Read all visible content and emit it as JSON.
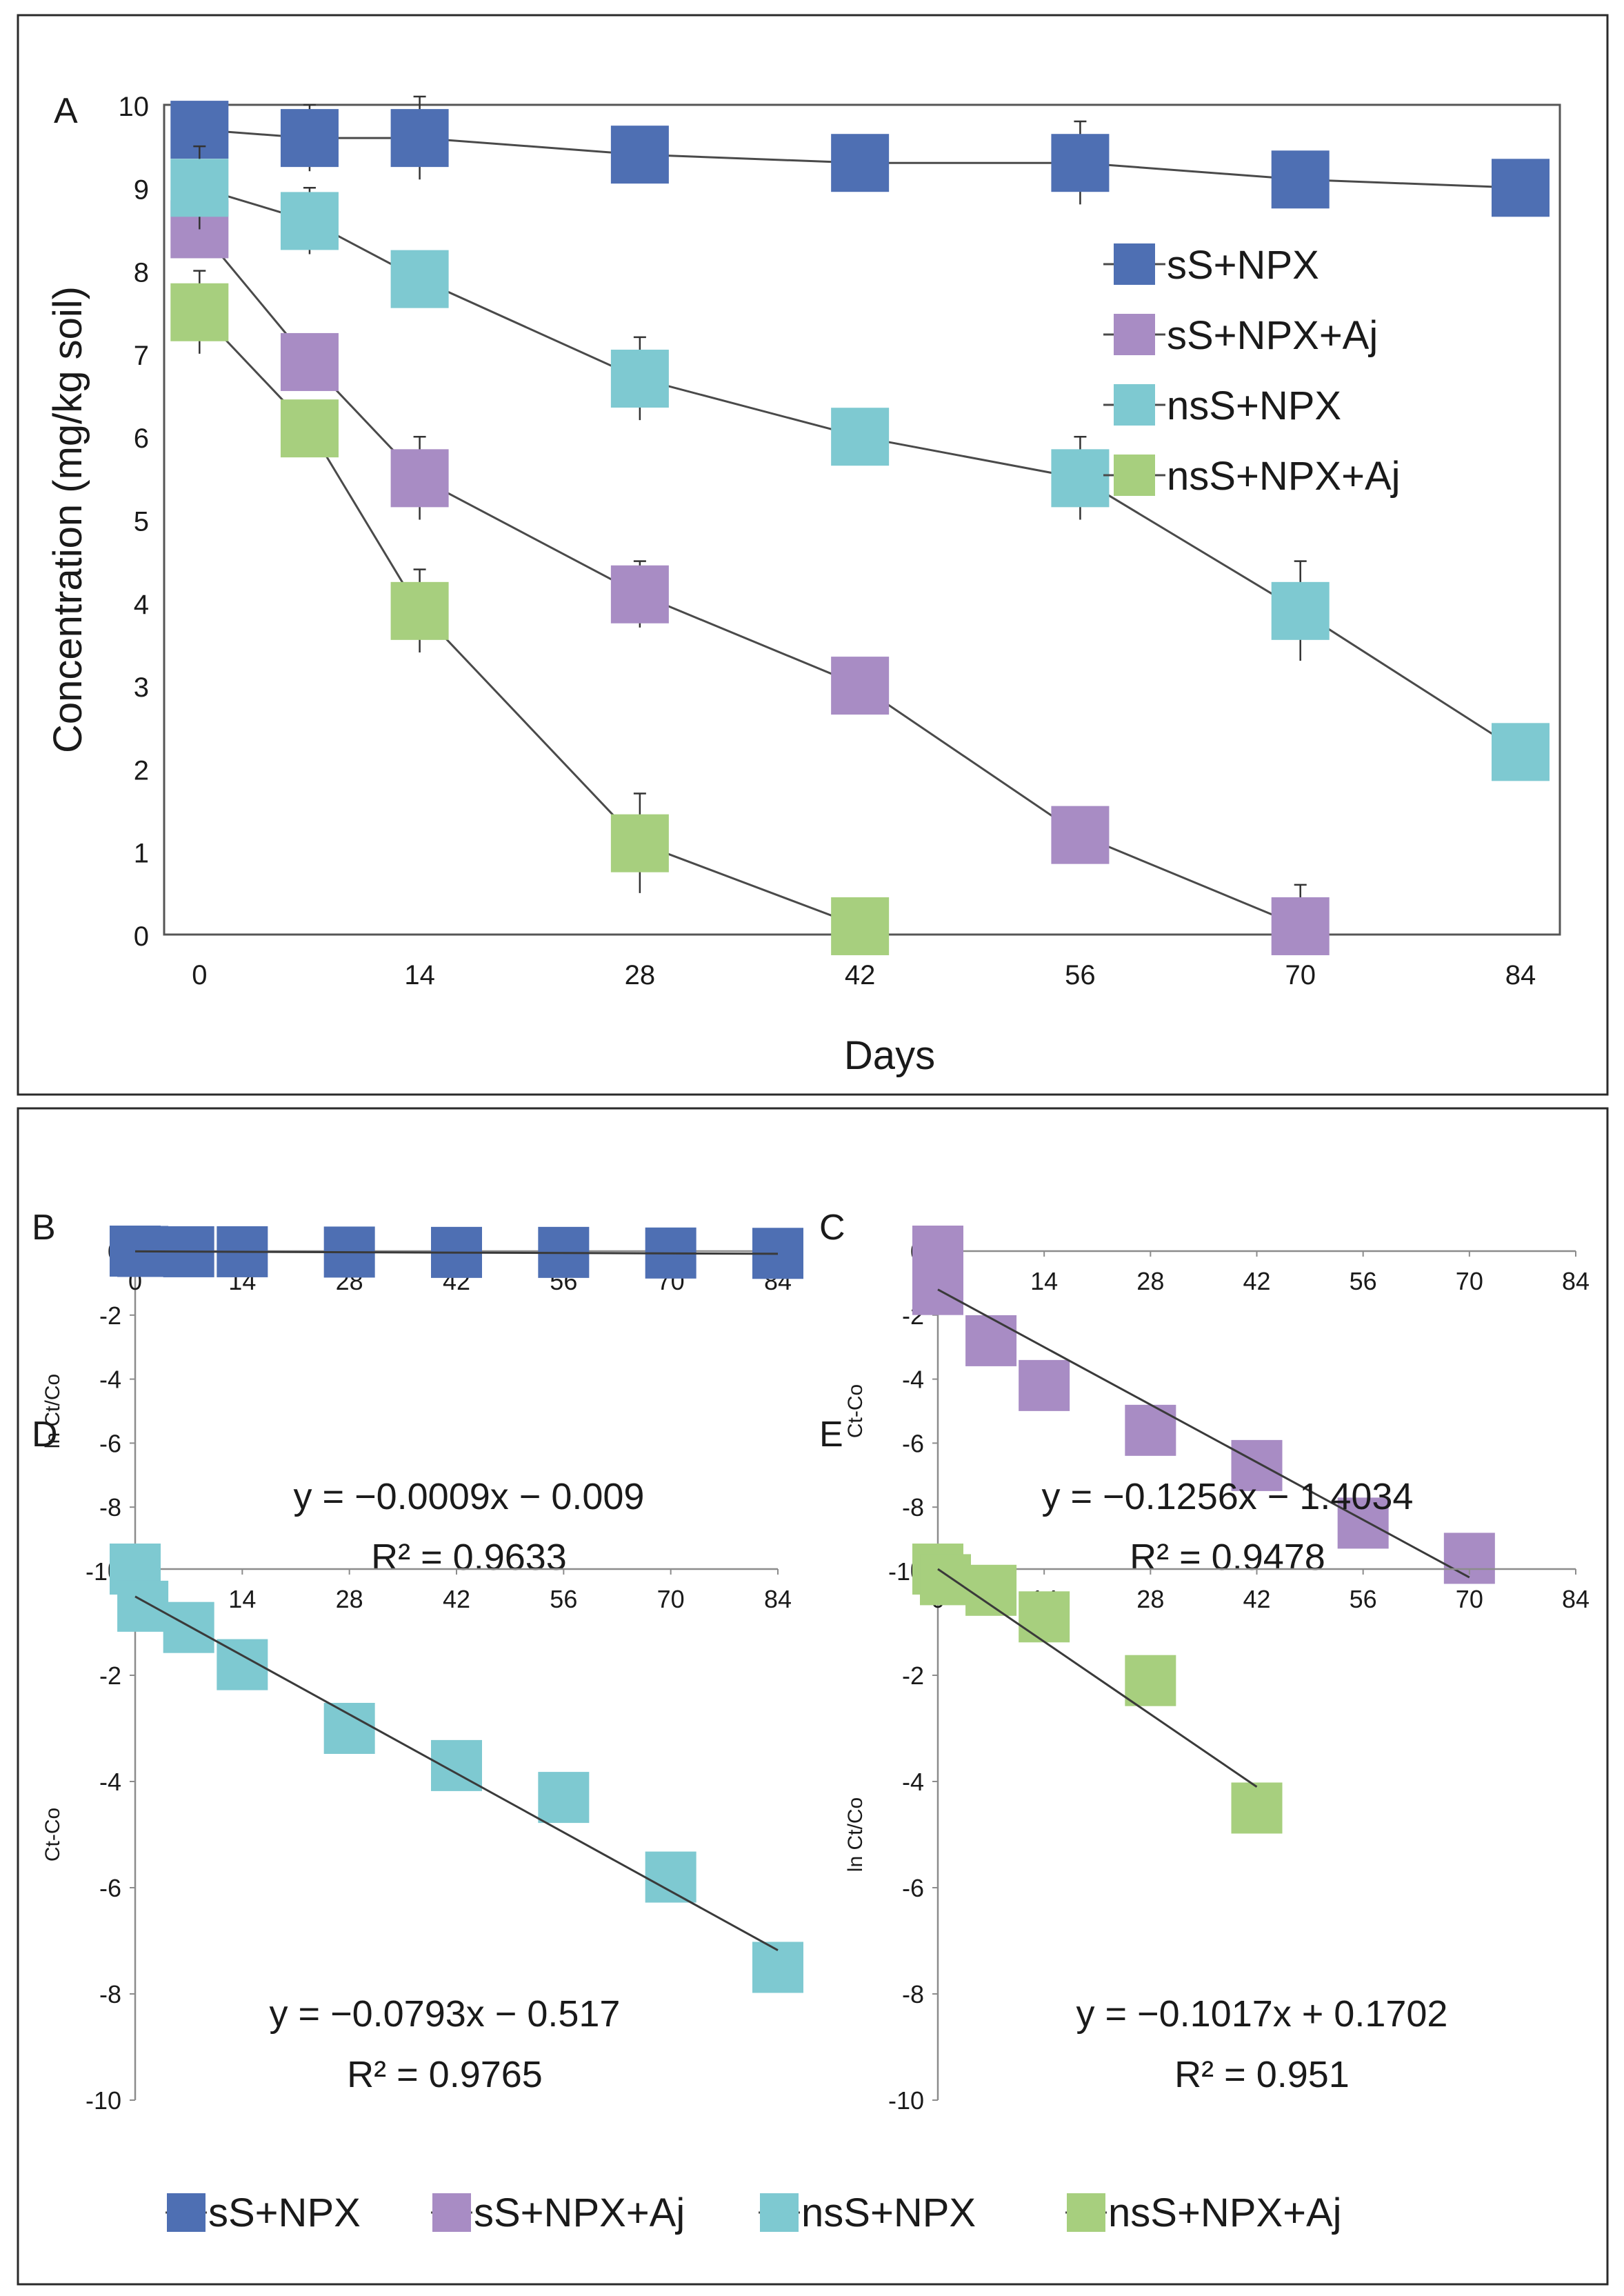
{
  "chart_data": [
    {
      "panel": "A",
      "type": "line",
      "xlabel": "Days",
      "ylabel": "Concentration (mg/kg soil)",
      "xlim": [
        0,
        84
      ],
      "ylim": [
        0,
        10
      ],
      "xticks": [
        0,
        14,
        28,
        42,
        56,
        70,
        84
      ],
      "yticks": [
        0,
        1,
        2,
        3,
        4,
        5,
        6,
        7,
        8,
        9,
        10
      ],
      "error_bars": true,
      "series": [
        {
          "name": "sS+NPX",
          "color": "#4e6fb3",
          "x": [
            0,
            7,
            14,
            28,
            42,
            56,
            70,
            84
          ],
          "y": [
            9.7,
            9.6,
            9.6,
            9.4,
            9.3,
            9.3,
            9.1,
            9.0
          ],
          "err": [
            0.3,
            0.4,
            0.5,
            0.2,
            0.2,
            0.5,
            0.3,
            0.2
          ]
        },
        {
          "name": "sS+NPX+Aj",
          "color": "#a88cc4",
          "x": [
            0,
            7,
            14,
            28,
            42,
            56,
            70
          ],
          "y": [
            8.5,
            6.9,
            5.5,
            4.1,
            3.0,
            1.2,
            0.1
          ],
          "err": [
            0.3,
            0.3,
            0.5,
            0.4,
            0.2,
            0.2,
            0.5
          ]
        },
        {
          "name": "nsS+NPX",
          "color": "#7ec9d1",
          "x": [
            0,
            7,
            14,
            28,
            42,
            56,
            70,
            84
          ],
          "y": [
            9.0,
            8.6,
            7.9,
            6.7,
            6.0,
            5.5,
            3.9,
            2.2
          ],
          "err": [
            0.5,
            0.4,
            0.3,
            0.5,
            0.3,
            0.5,
            0.6,
            0.2
          ]
        },
        {
          "name": "nsS+NPX+Aj",
          "color": "#a7cf7e",
          "x": [
            0,
            7,
            14,
            28,
            42
          ],
          "y": [
            7.5,
            6.1,
            3.9,
            1.1,
            0.1
          ],
          "err": [
            0.5,
            0.3,
            0.5,
            0.6,
            0.1
          ]
        }
      ]
    },
    {
      "panel": "B",
      "type": "scatter",
      "series_name": "sS+NPX",
      "color": "#4e6fb3",
      "ylabel": "ln Ct/Co",
      "xlim": [
        0,
        84
      ],
      "ylim": [
        -10,
        0
      ],
      "xticks": [
        0,
        14,
        28,
        42,
        56,
        70,
        84
      ],
      "yticks": [
        0,
        -2,
        -4,
        -6,
        -8,
        -10
      ],
      "x": [
        0,
        1,
        7,
        14,
        28,
        42,
        56,
        70,
        84
      ],
      "y": [
        0,
        -0.01,
        -0.02,
        -0.02,
        -0.03,
        -0.04,
        -0.04,
        -0.06,
        -0.07
      ],
      "fit": {
        "slope": -0.0009,
        "intercept": -0.009,
        "x_range": [
          0,
          84
        ]
      },
      "equation": "y = −0.0009x − 0.009",
      "r2": "R² = 0.9633"
    },
    {
      "panel": "C",
      "type": "scatter",
      "series_name": "sS+NPX+Aj",
      "color": "#a88cc4",
      "ylabel": "Ct-Co",
      "xlim": [
        0,
        84
      ],
      "ylim": [
        -10,
        0
      ],
      "xticks": [
        0,
        14,
        28,
        42,
        56,
        70,
        84
      ],
      "yticks": [
        0,
        -2,
        -4,
        -6,
        -8,
        -10
      ],
      "x": [
        0,
        0,
        7,
        14,
        28,
        42,
        56,
        70
      ],
      "y": [
        0,
        -1.2,
        -2.8,
        -4.2,
        -5.6,
        -6.7,
        -8.5,
        -9.6
      ],
      "fit": {
        "slope": -0.1256,
        "intercept": -1.4034,
        "x_range": [
          0,
          70
        ]
      },
      "equation": "y = −0.1256x − 1.4034",
      "r2": "R² = 0.9478"
    },
    {
      "panel": "D",
      "type": "scatter",
      "series_name": "nsS+NPX",
      "color": "#7ec9d1",
      "ylabel": "Ct-Co",
      "xlim": [
        0,
        84
      ],
      "ylim": [
        -10,
        0
      ],
      "xticks": [
        0,
        14,
        28,
        42,
        56,
        70,
        84
      ],
      "yticks": [
        0,
        -2,
        -4,
        -6,
        -8,
        -10
      ],
      "x": [
        0,
        1,
        7,
        14,
        28,
        42,
        56,
        70,
        84
      ],
      "y": [
        0,
        -0.7,
        -1.1,
        -1.8,
        -3.0,
        -3.7,
        -4.3,
        -5.8,
        -7.5
      ],
      "fit": {
        "slope": -0.0793,
        "intercept": -0.517,
        "x_range": [
          0,
          84
        ]
      },
      "equation": "y = −0.0793x − 0.517",
      "r2": "R² = 0.9765"
    },
    {
      "panel": "E",
      "type": "scatter",
      "series_name": "nsS+NPX+Aj",
      "color": "#a7cf7e",
      "ylabel": "ln Ct/Co",
      "xlim": [
        0,
        84
      ],
      "ylim": [
        -10,
        0
      ],
      "xticks": [
        0,
        14,
        28,
        42,
        56,
        70,
        84
      ],
      "yticks": [
        0,
        -2,
        -4,
        -6,
        -8,
        -10
      ],
      "x": [
        0,
        1,
        7,
        14,
        28,
        42
      ],
      "y": [
        0,
        -0.2,
        -0.4,
        -0.9,
        -2.1,
        -4.5
      ],
      "fit": {
        "slope": -0.1017,
        "intercept": 0.1702,
        "x_range": [
          0,
          42
        ]
      },
      "equation": "y = −0.1017x + 0.1702",
      "r2": "R² = 0.951"
    }
  ],
  "legend_bottom": [
    {
      "label": "sS+NPX",
      "color": "#4e6fb3"
    },
    {
      "label": "sS+NPX+Aj",
      "color": "#a88cc4"
    },
    {
      "label": "nsS+NPX",
      "color": "#7ec9d1"
    },
    {
      "label": "nsS+NPX+Aj",
      "color": "#a7cf7e"
    }
  ]
}
